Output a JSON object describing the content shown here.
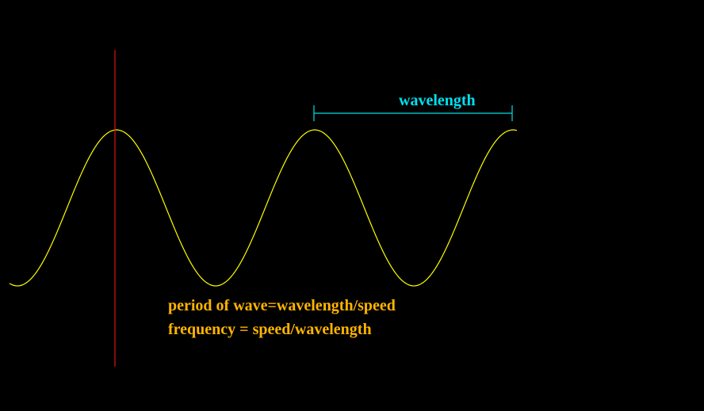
{
  "labels": {
    "wavelength": "wavelength",
    "period": "period of wave=wavelength/speed",
    "frequency": "frequency = speed/wavelength"
  }
}
